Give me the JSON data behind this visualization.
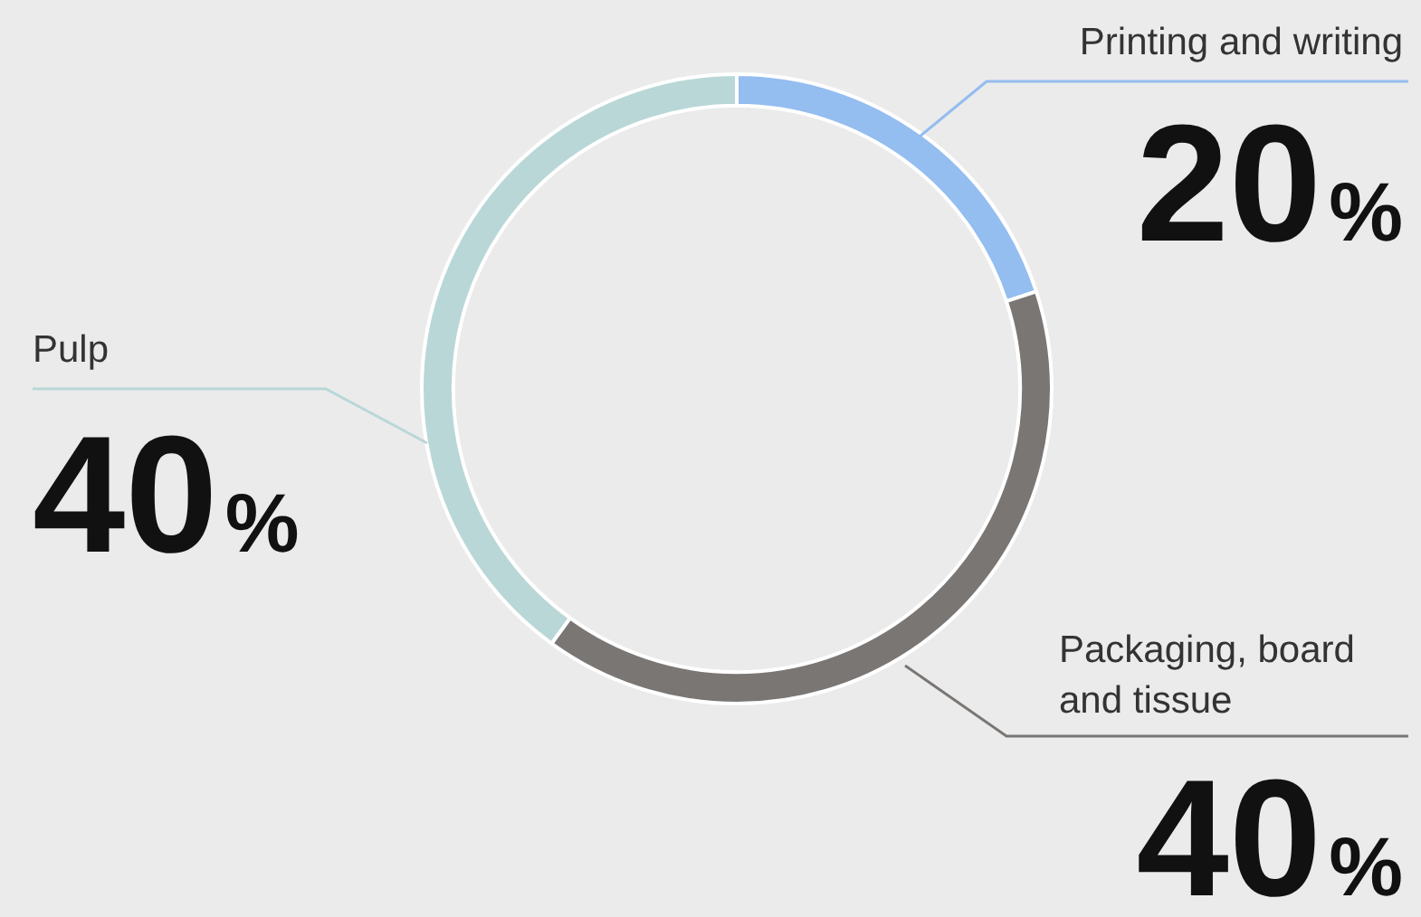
{
  "chart_data": {
    "type": "donut",
    "categories": [
      "Printing and writing",
      "Packaging, board and tissue",
      "Pulp"
    ],
    "values": [
      20,
      40,
      40
    ],
    "colors": [
      "#94bdf0",
      "#7a7674",
      "#b9d7d6"
    ],
    "value_labels": [
      "20%",
      "40%",
      "40%"
    ],
    "legend": false
  }
}
